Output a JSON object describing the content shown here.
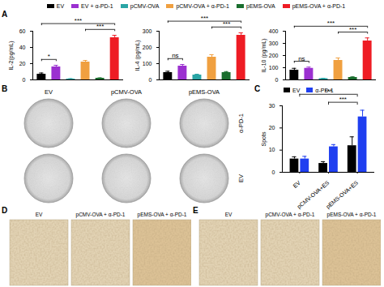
{
  "panels": {
    "labels": [
      "A",
      "B",
      "C",
      "D",
      "E"
    ],
    "legend_entries": [
      {
        "name": "EV",
        "color": "#000000"
      },
      {
        "name": "EV + α-PD-1",
        "color": "#9b30d0"
      },
      {
        "name": "pCMV-OVA",
        "color": "#2aa5a5"
      },
      {
        "name": "pCMV-OVA + α-PD-1",
        "color": "#f0a040"
      },
      {
        "name": "pEMS-OVA",
        "color": "#1a6e2e"
      },
      {
        "name": "pEMS-OVA + α-PD-1",
        "color": "#ee1c24"
      }
    ],
    "B": {
      "columns": [
        "EV",
        "pCMV-OVA",
        "pEMS-OVA"
      ],
      "rows": [
        "α-PD-1",
        "EV"
      ]
    },
    "D": {
      "labels": [
        "EV",
        "pCMV-OVA + α-PD-1",
        "pEMS-OVA + α-PD-1"
      ]
    },
    "E": {
      "labels": [
        "EV",
        "pCMV-OVA + α-PD-1",
        "pEMS-OVA + α-PD-1"
      ]
    }
  },
  "chart_data": [
    {
      "type": "bar",
      "ylabel": "IL-2(pg/mL)",
      "categories": [
        null,
        null,
        null,
        null,
        null,
        null
      ],
      "values": [
        7,
        16,
        1,
        22,
        2,
        52
      ],
      "errors": [
        1.5,
        2,
        0.5,
        2,
        0.5,
        3
      ],
      "colors": [
        "#000000",
        "#9b30d0",
        "#2aa5a5",
        "#f0a040",
        "#1a6e2e",
        "#ee1c24"
      ],
      "ylim": [
        0,
        60
      ],
      "yticks": [
        0,
        20,
        40,
        60
      ],
      "tick_labels": "y",
      "annotations": [
        {
          "label": "*",
          "between": [
            0,
            1
          ]
        },
        {
          "label": "***",
          "between": [
            3,
            5
          ]
        },
        {
          "label": "***",
          "between": [
            0,
            5
          ]
        }
      ]
    },
    {
      "type": "bar",
      "ylabel": "IL-4 (pg/mL)",
      "categories": [
        null,
        null,
        null,
        null,
        null,
        null
      ],
      "values": [
        45,
        85,
        30,
        140,
        45,
        275
      ],
      "errors": [
        8,
        10,
        5,
        15,
        6,
        15
      ],
      "colors": [
        "#000000",
        "#9b30d0",
        "#2aa5a5",
        "#f0a040",
        "#1a6e2e",
        "#ee1c24"
      ],
      "ylim": [
        0,
        300
      ],
      "yticks": [
        0,
        100,
        200,
        300
      ],
      "tick_labels": "y",
      "annotations": [
        {
          "label": "ns",
          "between": [
            0,
            1
          ]
        },
        {
          "label": "***",
          "between": [
            3,
            5
          ]
        },
        {
          "label": "***",
          "between": [
            0,
            5
          ]
        }
      ]
    },
    {
      "type": "bar",
      "ylabel": "IL-10 (pg/mL)",
      "categories": [
        null,
        null,
        null,
        null,
        null,
        null
      ],
      "values": [
        80,
        95,
        10,
        160,
        20,
        320
      ],
      "errors": [
        15,
        10,
        3,
        20,
        5,
        25
      ],
      "colors": [
        "#000000",
        "#9b30d0",
        "#2aa5a5",
        "#f0a040",
        "#1a6e2e",
        "#ee1c24"
      ],
      "ylim": [
        0,
        400
      ],
      "yticks": [
        0,
        100,
        200,
        300,
        400
      ],
      "tick_labels": "y",
      "annotations": [
        {
          "label": "ns",
          "between": [
            0,
            1
          ]
        },
        {
          "label": "***",
          "between": [
            3,
            5
          ]
        },
        {
          "label": "***",
          "between": [
            0,
            5
          ]
        }
      ]
    },
    {
      "type": "bar",
      "ylabel": "Spots",
      "categories": [
        "EV",
        "pCMV-OVA+ES",
        "pEMS-OVA+ES"
      ],
      "series": [
        {
          "name": "EV",
          "color": "#000000",
          "values": [
            6,
            4,
            12
          ],
          "errors": [
            1,
            0.8,
            4
          ]
        },
        {
          "name": "α-PD-1",
          "color": "#1f3ff0",
          "values": [
            6,
            11.5,
            25
          ],
          "errors": [
            1.2,
            1,
            3
          ]
        }
      ],
      "ylim": [
        0,
        30
      ],
      "yticks": [
        0,
        10,
        20,
        30
      ],
      "legend": "top-left",
      "annotations": [
        {
          "label": "***",
          "between": [
            1,
            2
          ]
        },
        {
          "label": "***",
          "between": [
            0,
            2
          ]
        }
      ]
    }
  ]
}
